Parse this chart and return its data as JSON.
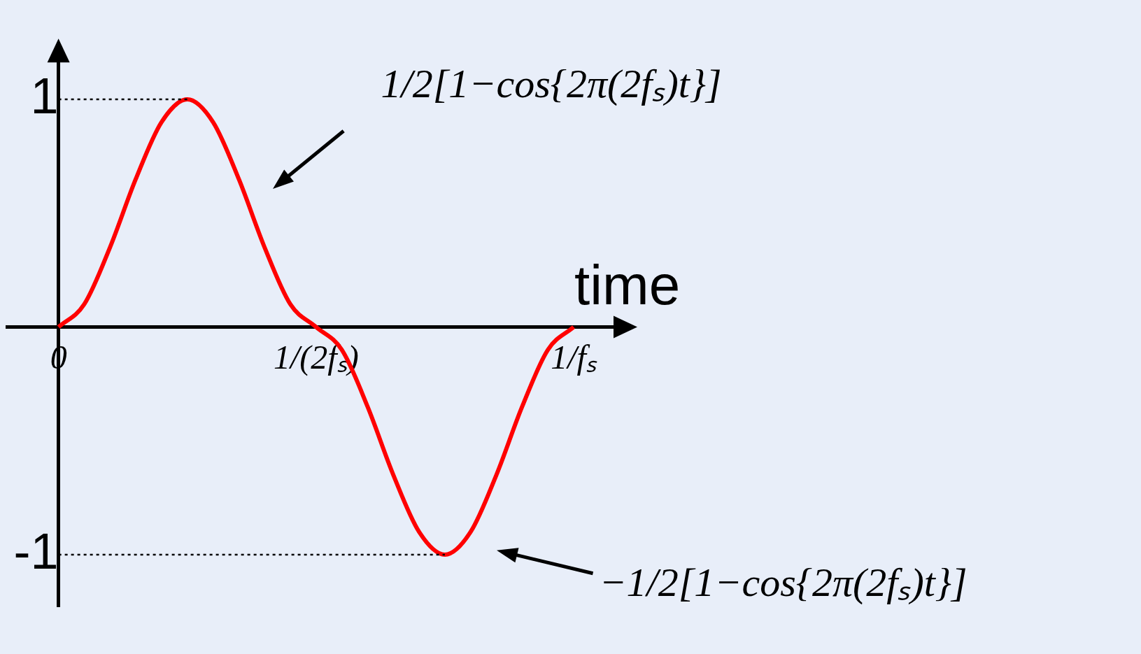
{
  "chart_data": {
    "type": "line",
    "xlabel": "time",
    "x": [
      0,
      0.05,
      0.1,
      0.15,
      0.2,
      0.25,
      0.3,
      0.35,
      0.4,
      0.45,
      0.5,
      0.55,
      0.6,
      0.65,
      0.7,
      0.75,
      0.8,
      0.85,
      0.9,
      0.95,
      1
    ],
    "series": [
      {
        "color": "#ff0000",
        "values": [
          0,
          0.1,
          0.35,
          0.65,
          0.9,
          1,
          0.9,
          0.65,
          0.35,
          0.1,
          0,
          -0.1,
          -0.35,
          -0.65,
          -0.9,
          -1,
          -0.9,
          -0.65,
          -0.35,
          -0.1,
          0
        ]
      }
    ],
    "xlim": [
      -0.1,
      1.11
    ],
    "ylim": [
      -1.23,
      1.23
    ],
    "xticks": [
      {
        "value": 0,
        "label": "0"
      },
      {
        "value": 0.5,
        "label": "1/(2fₛ)"
      },
      {
        "value": 1,
        "label": "1/fₛ"
      }
    ],
    "yticks": [
      1,
      -1
    ],
    "ref_lines": [
      {
        "axis": "y",
        "value": 1,
        "line_style": "dotted",
        "color": "#000000"
      },
      {
        "axis": "y",
        "value": -1,
        "line_style": "dotted",
        "color": "#000000"
      }
    ],
    "annotations": [
      "1/2[1−cos{2π(2fₛ)t}]",
      "−1/2[1−cos{2π(2fₛ)t}]"
    ],
    "grid": false,
    "legend": false
  }
}
